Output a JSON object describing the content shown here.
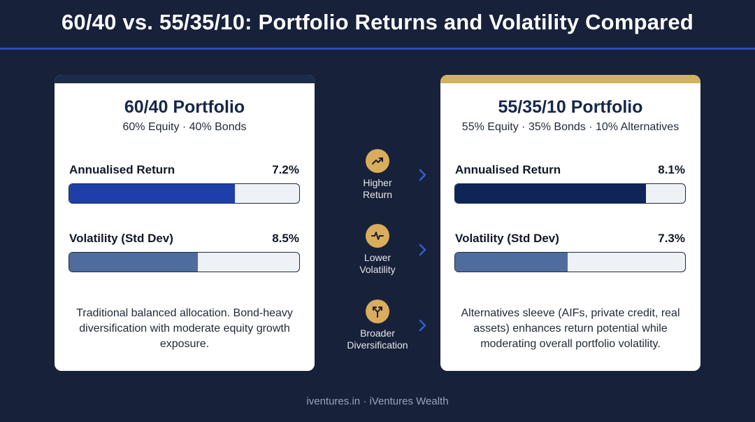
{
  "title": "60/40 vs. 55/35/10: Portfolio Returns and Volatility Compared",
  "colors": {
    "background": "#18213a",
    "accent_blue": "#1e3fa8",
    "navy": "#0f2558",
    "steel": "#4e6d9e",
    "gold": "#d2b25e"
  },
  "chart_data": [
    {
      "type": "bar",
      "title": "60/40 Portfolio",
      "subtitle": "60% Equity · 40% Bonds",
      "categories": [
        "Annualised Return",
        "Volatility (Std Dev)"
      ],
      "values": [
        7.2,
        8.5
      ],
      "value_labels": [
        "7.2%",
        "8.5%"
      ],
      "fill_fractions": [
        0.72,
        0.56
      ],
      "unit": "%",
      "description": "Traditional balanced allocation. Bond-heavy diversification with moderate equity growth exposure."
    },
    {
      "type": "bar",
      "title": "55/35/10 Portfolio",
      "subtitle": "55% Equity · 35% Bonds · 10% Alternatives",
      "categories": [
        "Annualised Return",
        "Volatility (Std Dev)"
      ],
      "values": [
        8.1,
        7.3
      ],
      "value_labels": [
        "8.1%",
        "7.3%"
      ],
      "fill_fractions": [
        0.83,
        0.49
      ],
      "unit": "%",
      "description": "Alternatives sleeve (AIFs, private credit, real assets) enhances return potential while moderating overall portfolio volatility."
    }
  ],
  "benefits": [
    {
      "label_line1": "Higher",
      "label_line2": "Return",
      "icon": "trend-up-icon"
    },
    {
      "label_line1": "Lower",
      "label_line2": "Volatility",
      "icon": "pulse-icon"
    },
    {
      "label_line1": "Broader",
      "label_line2": "Diversification",
      "icon": "split-arrows-icon"
    }
  ],
  "footer": "iventures.in · iVentures Wealth"
}
